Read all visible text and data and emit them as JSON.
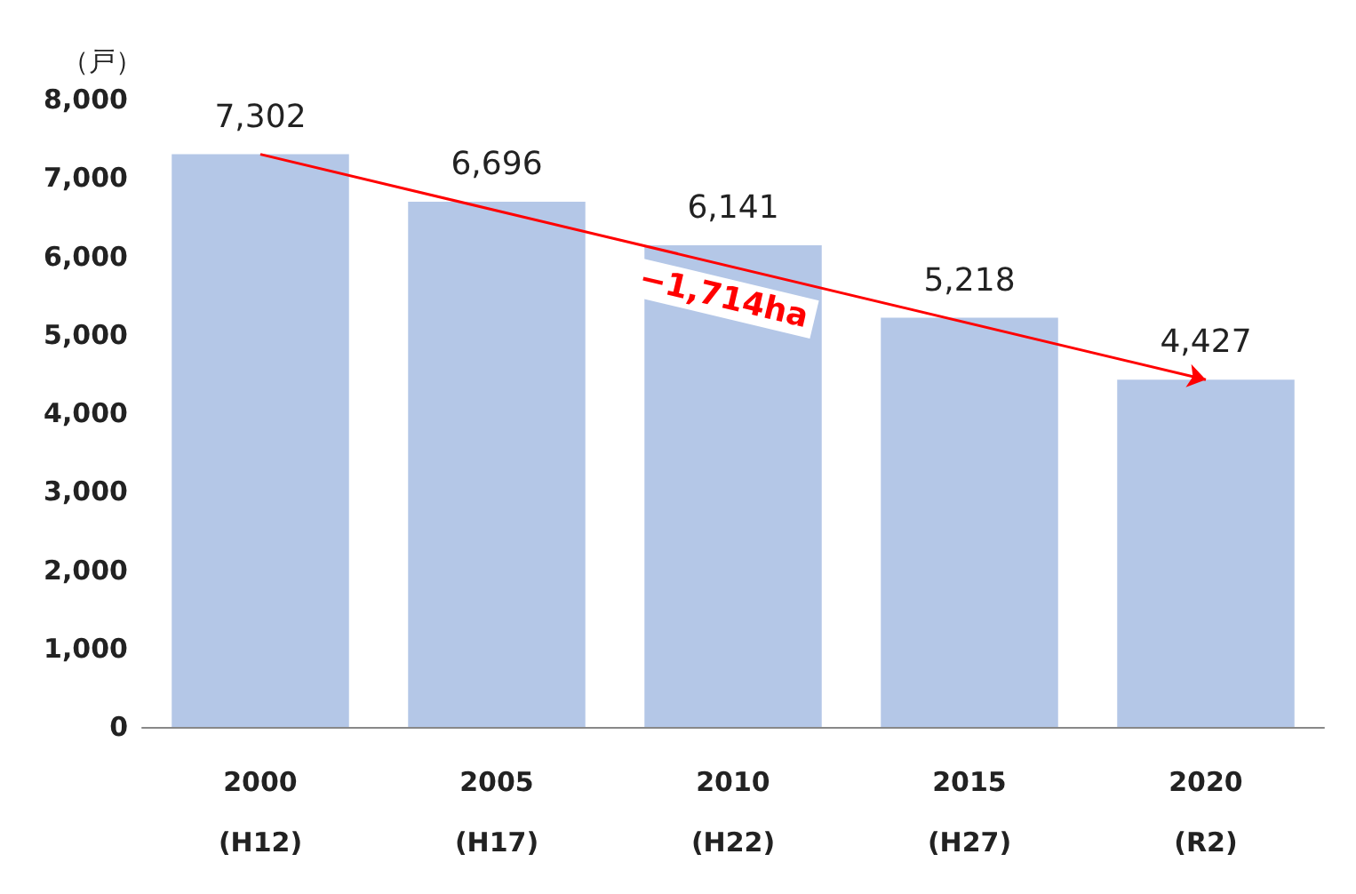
{
  "chart_data": {
    "type": "bar",
    "ylabel": "（戸）",
    "categories": [
      "2000\n(H12)",
      "2005\n(H17)",
      "2010\n(H22)",
      "2015\n(H27)",
      "2020\n(R2)"
    ],
    "values": [
      7302,
      6696,
      6141,
      5218,
      4427
    ],
    "color": "#b4c7e7",
    "value_labels": [
      "7,302",
      "6,696",
      "6,141",
      "5,218",
      "4,427"
    ],
    "ylim": [
      0,
      8000
    ],
    "yticks": [
      0,
      {
        "value": 1000,
        "label": "1,000"
      },
      {
        "value": 2000,
        "label": "2,000"
      },
      {
        "value": 3000,
        "label": "3,000"
      },
      {
        "value": 4000,
        "label": "4,000"
      },
      {
        "value": 5000,
        "label": "5,000"
      },
      {
        "value": 6000,
        "label": "6,000"
      },
      {
        "value": 7000,
        "label": "7,000"
      },
      {
        "value": 8000,
        "label": "8,000"
      }
    ],
    "annotations": [
      "−1,714ha"
    ],
    "grid": false
  }
}
